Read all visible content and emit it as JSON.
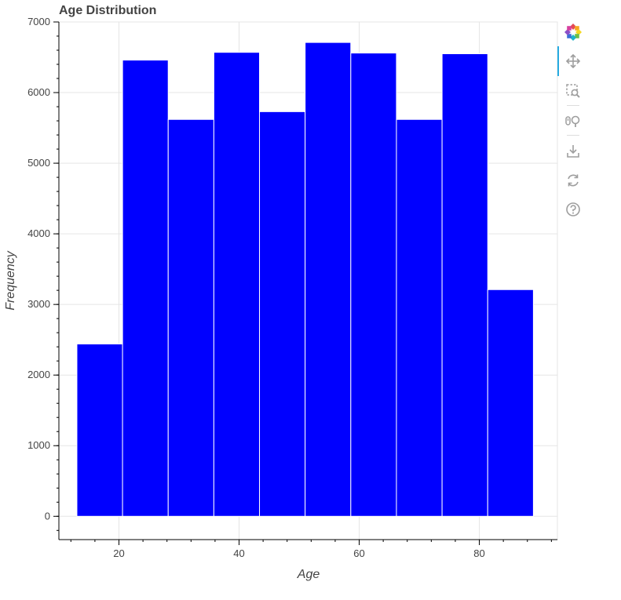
{
  "chart_data": {
    "type": "bar",
    "title": "Age Distribution",
    "xlabel": "Age",
    "ylabel": "Frequency",
    "bins": [
      {
        "start": 13,
        "end": 20.6,
        "value": 2440
      },
      {
        "start": 20.6,
        "end": 28.2,
        "value": 6460
      },
      {
        "start": 28.2,
        "end": 35.8,
        "value": 5620
      },
      {
        "start": 35.8,
        "end": 43.4,
        "value": 6570
      },
      {
        "start": 43.4,
        "end": 51.0,
        "value": 5730
      },
      {
        "start": 51.0,
        "end": 58.6,
        "value": 6710
      },
      {
        "start": 58.6,
        "end": 66.2,
        "value": 6560
      },
      {
        "start": 66.2,
        "end": 73.8,
        "value": 5620
      },
      {
        "start": 73.8,
        "end": 81.4,
        "value": 6550
      },
      {
        "start": 81.4,
        "end": 89.0,
        "value": 3210
      }
    ],
    "xlim": [
      10,
      93
    ],
    "ylim": [
      -330,
      7000
    ],
    "xticks": [
      20,
      40,
      60,
      80
    ],
    "yticks": [
      0,
      1000,
      2000,
      3000,
      4000,
      5000,
      6000,
      7000
    ],
    "bar_color": "#0000ff",
    "bar_edge_color": "#ffffff",
    "grid": true,
    "legend": false
  },
  "toolbar": {
    "tools": [
      {
        "name": "bokeh-logo-icon"
      },
      {
        "name": "pan-tool-icon"
      },
      {
        "name": "box-zoom-tool-icon"
      },
      {
        "name": "wheel-zoom-tool-icon"
      },
      {
        "name": "save-tool-icon"
      },
      {
        "name": "reset-tool-icon"
      },
      {
        "name": "help-tool-icon"
      }
    ],
    "accent_color": "#26aae1",
    "icon_color": "#9e9e9e"
  }
}
